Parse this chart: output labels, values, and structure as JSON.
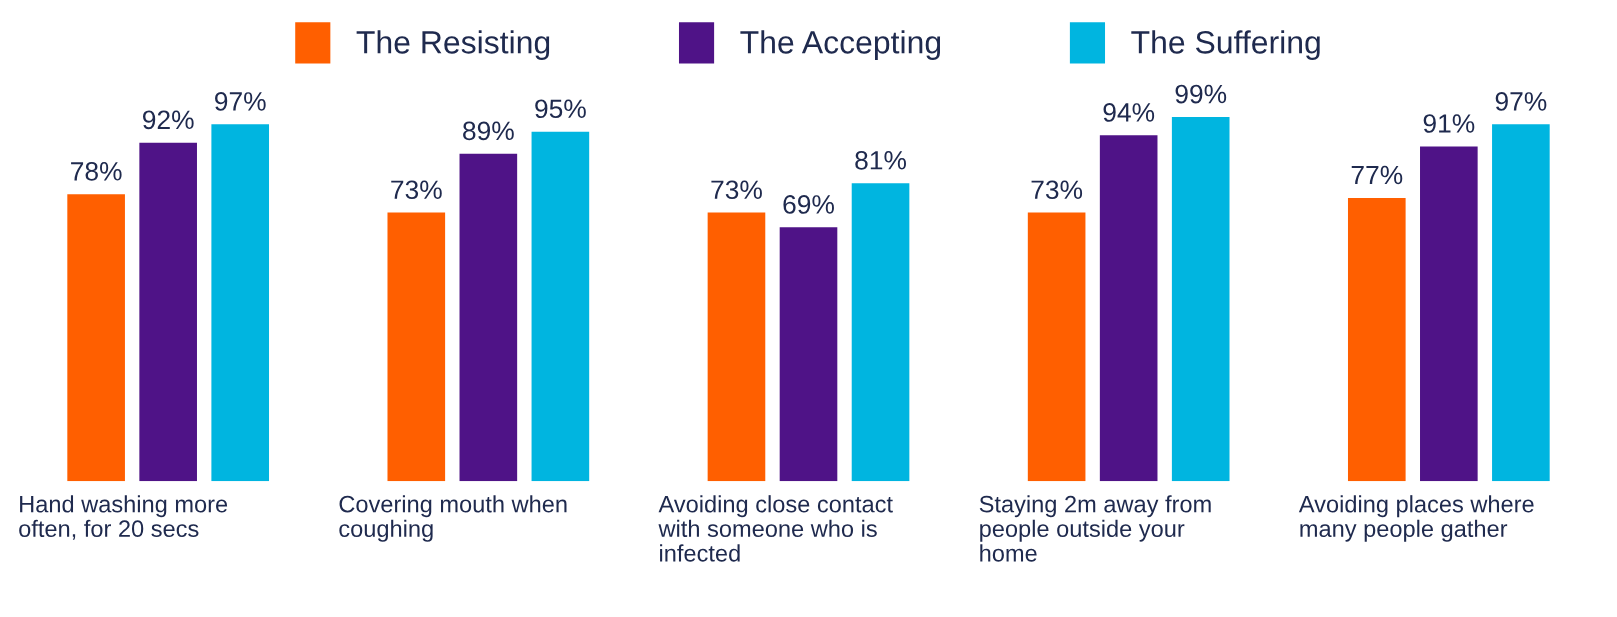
{
  "chart_data": {
    "type": "bar",
    "categories": [
      "Hand washing more\noften, for 20 secs",
      "Covering mouth when\ncoughing",
      "Avoiding close contact\nwith someone who is\ninfected",
      "Staying 2m away from\npeople outside your\nhome",
      "Avoiding places where\nmany people gather"
    ],
    "series": [
      {
        "name": "The Resisting",
        "color": "#ff5f00",
        "values": [
          78,
          73,
          73,
          73,
          77
        ],
        "value_labels": [
          "78%",
          "73%",
          "73%",
          "73%",
          "77%"
        ]
      },
      {
        "name": "The Accepting",
        "color": "#4f1387",
        "values": [
          92,
          89,
          69,
          94,
          91
        ],
        "value_labels": [
          "92%",
          "89%",
          "69%",
          "94%",
          "91%"
        ]
      },
      {
        "name": "The Suffering",
        "color": "#00b5e0",
        "values": [
          97,
          95,
          81,
          99,
          97
        ],
        "value_labels": [
          "97%",
          "95%",
          "81%",
          "99%",
          "97%"
        ]
      }
    ],
    "tick_labels": "x",
    "legend": "top",
    "grid": false
  }
}
